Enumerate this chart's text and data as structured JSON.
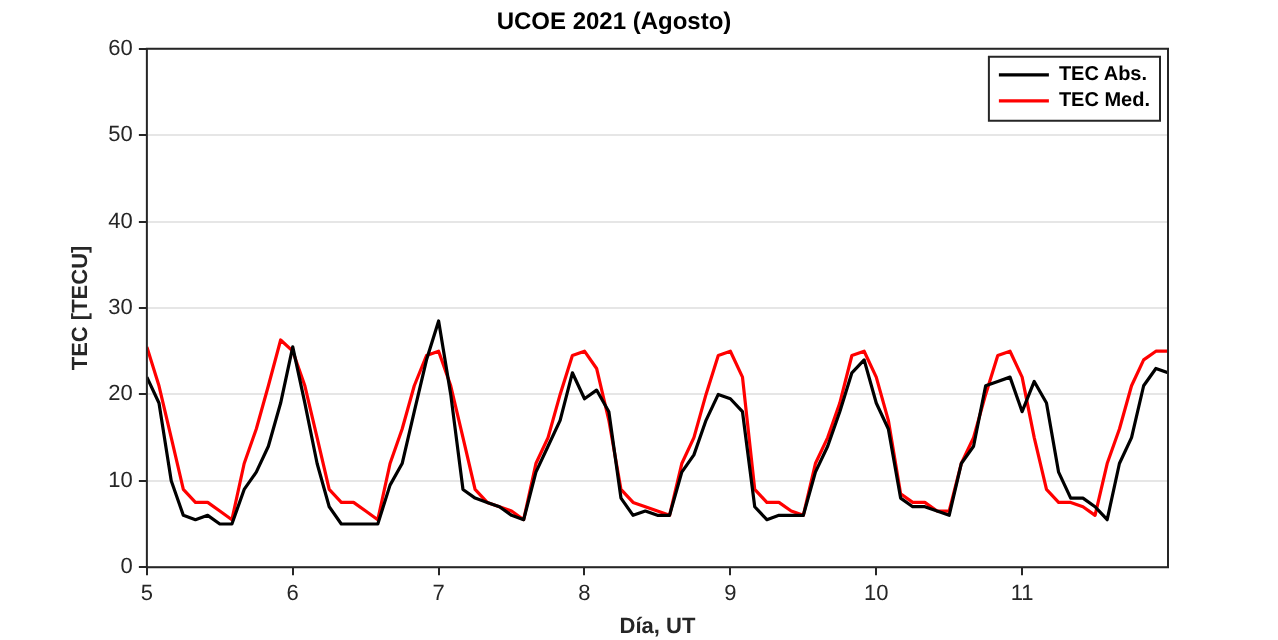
{
  "chart_data": {
    "type": "line",
    "title": "UCOE 2021 (Agosto)",
    "xlabel": "Día, UT",
    "ylabel": "TEC [TECU]",
    "x": [
      5,
      5.083,
      5.167,
      5.25,
      5.333,
      5.417,
      5.5,
      5.583,
      5.667,
      5.75,
      5.833,
      5.917,
      6,
      6.083,
      6.167,
      6.25,
      6.333,
      6.417,
      6.5,
      6.583,
      6.667,
      6.75,
      6.833,
      6.917,
      7,
      7.083,
      7.167,
      7.25,
      7.333,
      7.417,
      7.5,
      7.583,
      7.667,
      7.75,
      7.833,
      7.917,
      8,
      8.083,
      8.167,
      8.25,
      8.333,
      8.417,
      8.5,
      8.583,
      8.667,
      8.75,
      8.833,
      8.917,
      9,
      9.083,
      9.167,
      9.25,
      9.333,
      9.417,
      9.5,
      9.583,
      9.667,
      9.75,
      9.833,
      9.917,
      10,
      10.083,
      10.167,
      10.25,
      10.333,
      10.417,
      10.5,
      10.583,
      10.667,
      10.75,
      10.833,
      10.917,
      11,
      11.083,
      11.167,
      11.25,
      11.333,
      11.417,
      11.5,
      11.583,
      11.667,
      11.75,
      11.833,
      11.917,
      12
    ],
    "series": [
      {
        "name": "TEC Abs.",
        "color": "#000000",
        "values": [
          22,
          19,
          10,
          6,
          5.5,
          6,
          5,
          5,
          9,
          11,
          14,
          19,
          25.5,
          19,
          12,
          7,
          5,
          5,
          5,
          5,
          9.5,
          12,
          18,
          24,
          28.5,
          20,
          9,
          8,
          7.5,
          7,
          6,
          5.5,
          11,
          14,
          17,
          22.5,
          19.5,
          20.5,
          18,
          8,
          6,
          6.5,
          6,
          6,
          11,
          13,
          17,
          20,
          19.5,
          18,
          7,
          5.5,
          6,
          6,
          6,
          11,
          14,
          18,
          22.5,
          24,
          19,
          16,
          8,
          7,
          7,
          6.5,
          6,
          12,
          14,
          21,
          21.5,
          22,
          18,
          21.5,
          19,
          11,
          8,
          8,
          7,
          5.5,
          12,
          15,
          21,
          23,
          22.5
        ]
      },
      {
        "name": "TEC Med.",
        "color": "#ff0000",
        "values": [
          25.5,
          21,
          15,
          9,
          7.5,
          7.5,
          6.5,
          5.5,
          12,
          16,
          21,
          26.3,
          25,
          21,
          15,
          9,
          7.5,
          7.5,
          6.5,
          5.5,
          12,
          16,
          21,
          24.5,
          25,
          21,
          15,
          9,
          7.5,
          7,
          6.5,
          5.5,
          12,
          15,
          20,
          24.5,
          25,
          23,
          17,
          9,
          7.5,
          7,
          6.5,
          6,
          12,
          15,
          20,
          24.5,
          25,
          22,
          9,
          7.5,
          7.5,
          6.5,
          6,
          12,
          15,
          19,
          24.5,
          25,
          22,
          17,
          8.5,
          7.5,
          7.5,
          6.5,
          6.5,
          12,
          15,
          20,
          24.5,
          25,
          22,
          15,
          9,
          7.5,
          7.5,
          7,
          6,
          12,
          16,
          21,
          24,
          25,
          25
        ]
      }
    ],
    "xlim": [
      5,
      12
    ],
    "xticks": [
      5,
      6,
      7,
      8,
      9,
      10,
      11
    ],
    "ylim": [
      0,
      60
    ],
    "yticks": [
      0,
      10,
      20,
      30,
      40,
      50,
      60
    ],
    "grid": "y",
    "legend": "top right",
    "marker": "none",
    "line_style": "solid"
  }
}
